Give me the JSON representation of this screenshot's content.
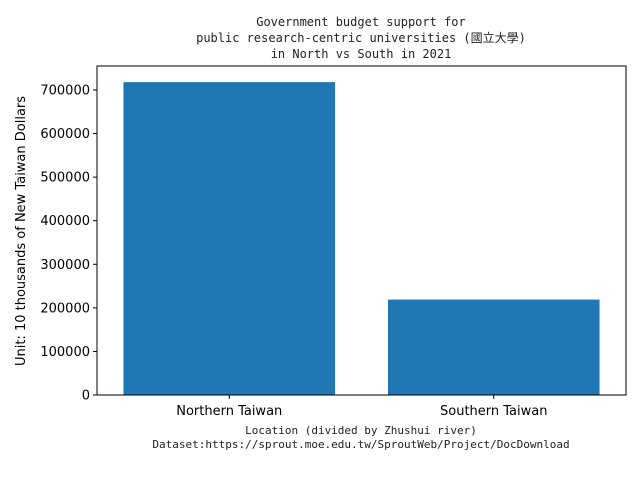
{
  "chart_data": {
    "type": "bar",
    "title_lines": [
      "Government budget support for",
      "public research-centric universities (國立大學)",
      "in North vs South in 2021"
    ],
    "categories": [
      "Northern Taiwan",
      "Southern Taiwan"
    ],
    "values": [
      718000,
      219000
    ],
    "xlabel_lines": [
      "Location (divided by Zhushui river)",
      "Dataset:https://sprout.moe.edu.tw/SproutWeb/Project/DocDownload"
    ],
    "ylabel": "Unit: 10 thousands of New Taiwan Dollars",
    "ylim": [
      0,
      755000
    ],
    "yticks": [
      "0",
      "100000",
      "200000",
      "300000",
      "400000",
      "500000",
      "600000",
      "700000"
    ],
    "bar_color": "#1f77b4",
    "grid": false,
    "legend": "none"
  }
}
